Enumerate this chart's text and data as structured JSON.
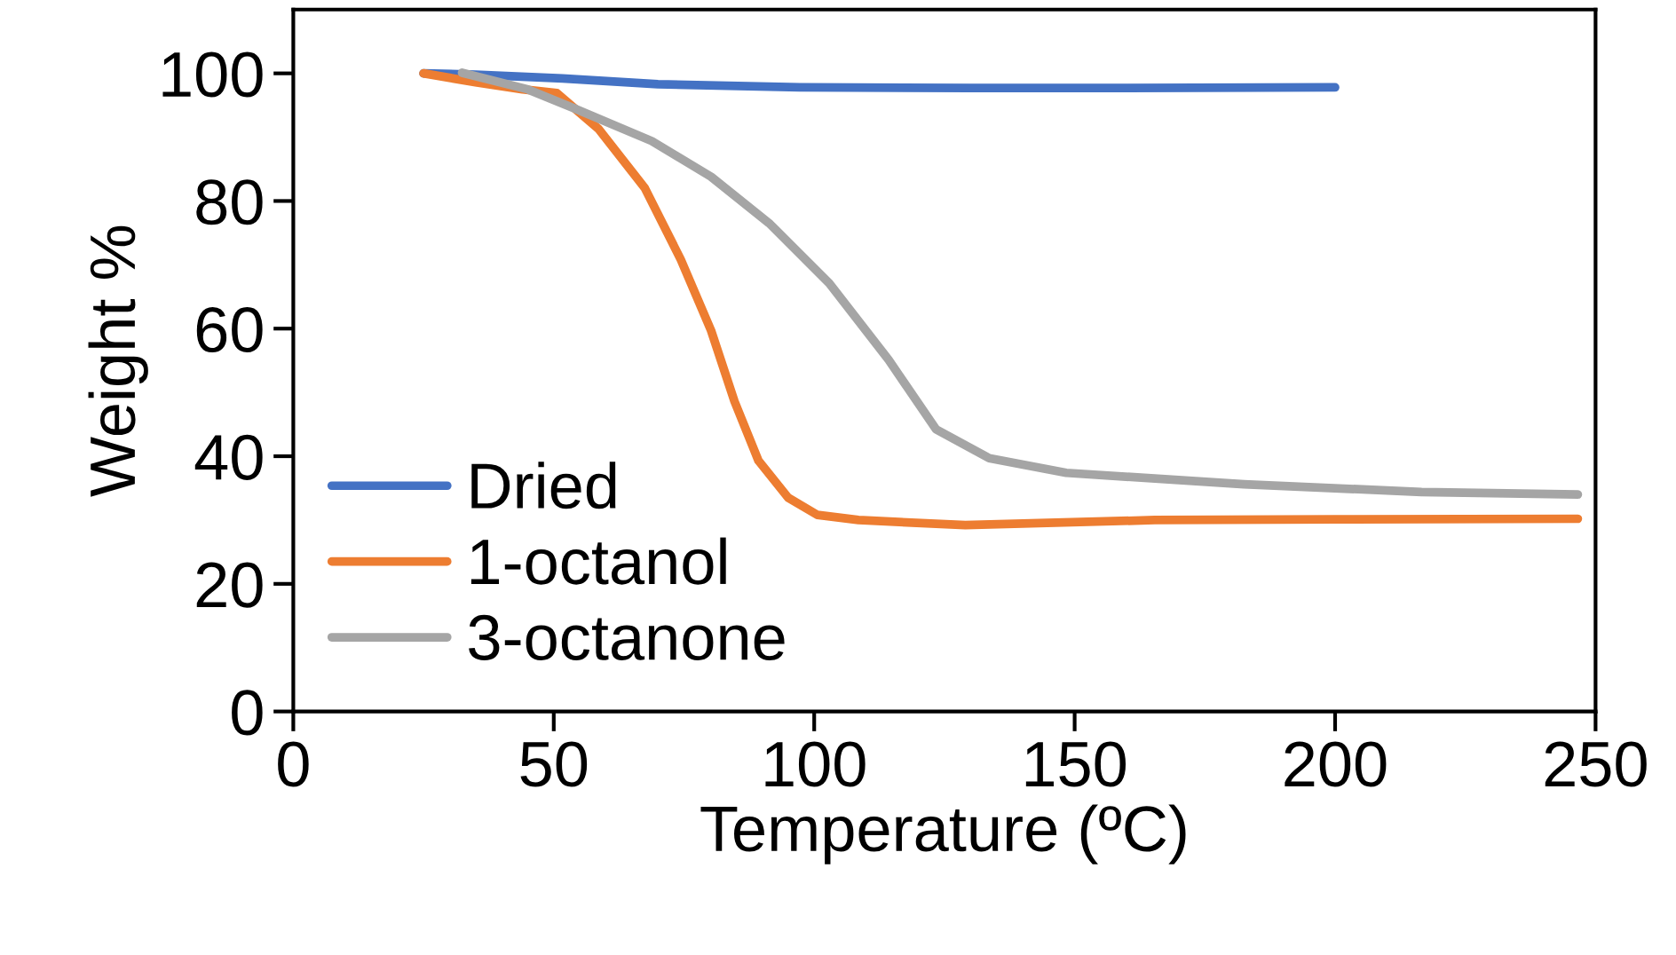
{
  "chart_data": {
    "type": "line",
    "xlabel": "Temperature (ºC)",
    "ylabel": "Weight %",
    "xlim": [
      0,
      250
    ],
    "ylim": [
      0,
      110
    ],
    "xticks": [
      0,
      50,
      100,
      150,
      200,
      250
    ],
    "yticks": [
      0,
      20,
      40,
      60,
      80,
      100
    ],
    "grid": false,
    "legend": "bottom left",
    "marker": "none",
    "line_style": "solid",
    "series": [
      {
        "name": "Dried",
        "color": "#4472c4",
        "x": [
          25,
          35,
          51.7,
          70,
          97.2,
          130,
          160,
          200
        ],
        "values": [
          100,
          99.8,
          99.2,
          98.3,
          97.8,
          97.7,
          97.7,
          97.8
        ]
      },
      {
        "name": "1-octanol",
        "color": "#ed7d31",
        "x": [
          25,
          35,
          44,
          50.6,
          58.6,
          67.5,
          74.4,
          80.2,
          84.7,
          89.3,
          95,
          100.6,
          108.5,
          129,
          165.4,
          200,
          246.6
        ],
        "values": [
          100,
          98.6,
          97.5,
          96.9,
          91.3,
          82.0,
          70.8,
          59.7,
          48.6,
          39.3,
          33.5,
          30.8,
          30.0,
          29.2,
          30.0,
          30.1,
          30.2
        ]
      },
      {
        "name": "3-octanone",
        "color": "#a5a5a5",
        "x": [
          32.4,
          45,
          54,
          68.8,
          80.2,
          91.5,
          102.9,
          114.3,
          123.4,
          133.6,
          148.4,
          182.5,
          216.6,
          246.6
        ],
        "values": [
          100.1,
          97.5,
          94.5,
          89.4,
          83.8,
          76.4,
          67.1,
          55.1,
          44.2,
          39.7,
          37.4,
          35.6,
          34.4,
          34.0
        ]
      }
    ]
  }
}
